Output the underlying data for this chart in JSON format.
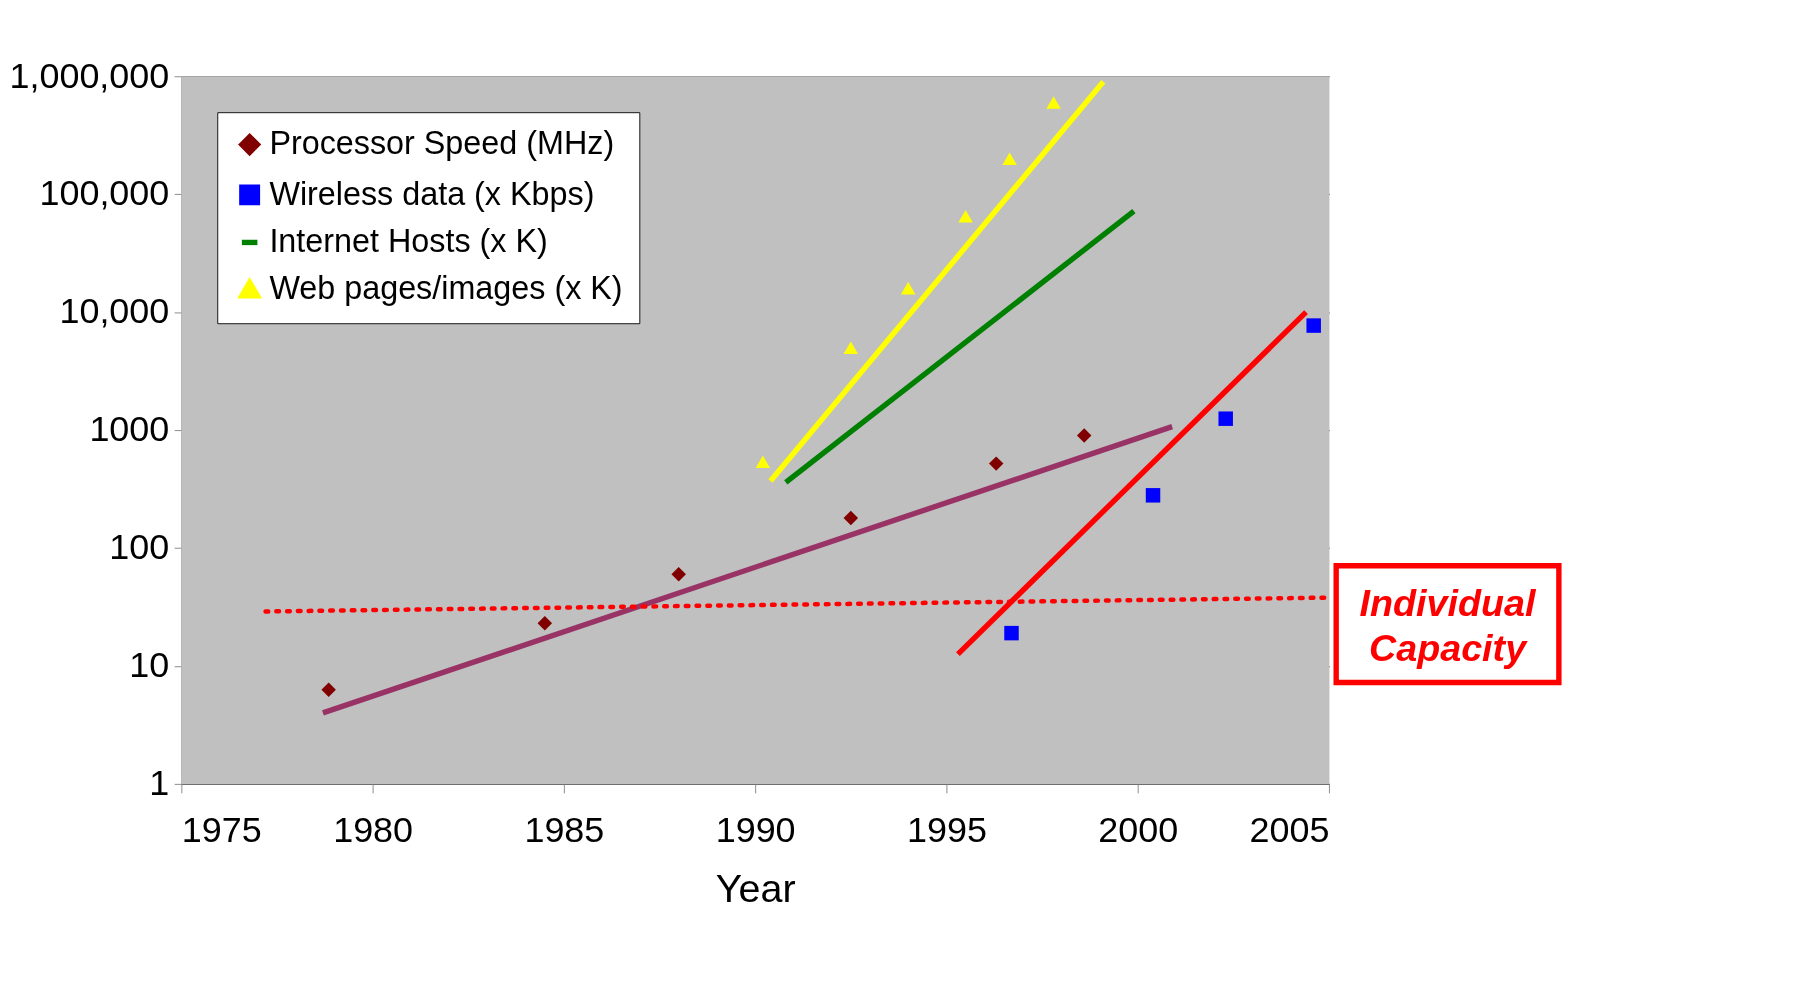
{
  "chart_data": {
    "type": "scatter",
    "xlabel": "Year",
    "log": "y",
    "grid": "y",
    "legend": "top left",
    "xlim": [
      1975,
      2005
    ],
    "xticks": [
      1975,
      1980,
      1985,
      1990,
      1995,
      2000,
      2005
    ],
    "ylim": [
      1,
      1000000
    ],
    "yticks": [
      1,
      10,
      100,
      1000,
      {
        "value": 10000,
        "label": "10,000"
      },
      {
        "value": 100000,
        "label": "100,000"
      },
      {
        "value": 1000000,
        "label": "1,000,000"
      }
    ],
    "series": [
      {
        "name": "Processor Speed (MHz)",
        "marker": "diamond",
        "color": "#800000",
        "x": [
          1978.85,
          1984.5,
          1988.0,
          1992.5,
          1996.3,
          1998.6
        ],
        "values": [
          6.3,
          23,
          60,
          180,
          520,
          900
        ]
      },
      {
        "name": "Wireless data (x Kbps)",
        "marker": "square",
        "color": "#0000ff",
        "x": [
          1996.7,
          2000.4,
          2002.3,
          2004.6
        ],
        "values": [
          19,
          280,
          1250,
          7700
        ]
      },
      {
        "name": "Internet Hosts (x K)",
        "type": "line",
        "line_style": "solid",
        "color": "#008000",
        "x": [
          1990.8,
          1999.9
        ],
        "values": [
          360,
          72000
        ]
      },
      {
        "name": "Web pages/images (x K)",
        "marker": "triangle",
        "color": "#ffff00",
        "x": [
          1990.2,
          1992.5,
          1994.0,
          1995.5,
          1996.65,
          1997.8
        ],
        "values": [
          540,
          5000,
          16000,
          65000,
          200000,
          600000
        ]
      },
      {
        "type": "line",
        "line_style": "solid",
        "color": "#ffff00",
        "x": [
          1990.4,
          1999.1
        ],
        "values": [
          370,
          900000
        ]
      },
      {
        "type": "line",
        "line_style": "solid",
        "color": "#993366",
        "x": [
          1978.7,
          2000.9
        ],
        "values": [
          4,
          1070
        ]
      },
      {
        "type": "line",
        "line_style": "solid",
        "color": "#ff0000",
        "x": [
          1995.3,
          2004.4
        ],
        "values": [
          12.6,
          10000
        ]
      },
      {
        "name": "Individual Capacity",
        "type": "line",
        "line_style": "dotted",
        "color": "#ff0000",
        "x": [
          1977.2,
          2005
        ],
        "values": [
          29,
          38
        ]
      }
    ]
  }
}
